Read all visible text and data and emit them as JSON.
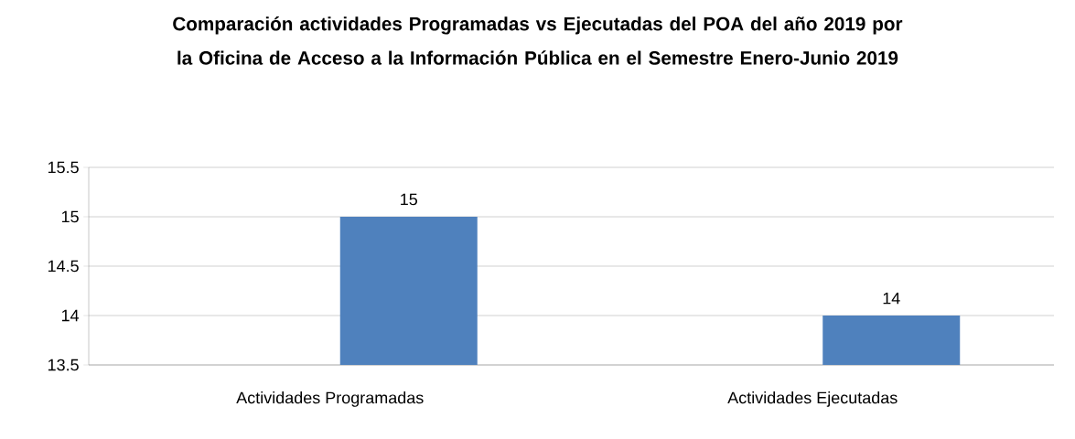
{
  "chart_data": {
    "type": "bar",
    "title": "Comparación actividades Programadas vs Ejecutadas del POA del año 2019 por la Oficina de Acceso a la Información Pública en el Semestre Enero-Junio 2019",
    "categories": [
      "Actividades Programadas",
      "Actividades Ejecutadas"
    ],
    "values": [
      15,
      14
    ],
    "color": "#4f81bd",
    "ylim": [
      13.5,
      15.5
    ],
    "yticks": [
      13.5,
      14,
      14.5,
      15,
      15.5
    ],
    "grid": "y",
    "data_labels": true
  }
}
